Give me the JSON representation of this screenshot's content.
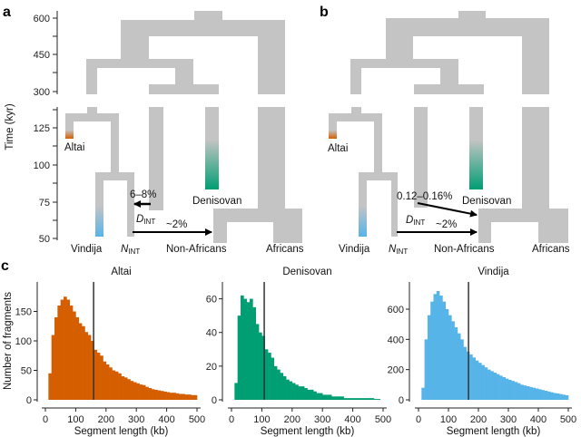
{
  "colors": {
    "branch": "#c4c4c4",
    "altai": "#d55e00",
    "denisovan": "#009e73",
    "vindija": "#56b4e9",
    "arrow": "#000000"
  },
  "panel_a": {
    "letter": "a",
    "y_axis_label": "Time (kyr)",
    "y_ticks_upper": [
      "600",
      "450",
      "300"
    ],
    "y_ticks_lower": [
      "125",
      "100",
      "75",
      "50"
    ],
    "labels": {
      "altai": "Altai",
      "denisovan": "Denisovan",
      "vindija": "Vindija",
      "nint_main": "N",
      "nint_sub": "INT",
      "non_africans": "Non-Africans",
      "africans": "Africans",
      "dint_main": "D",
      "dint_sub": "INT"
    },
    "arrows": [
      {
        "label": "6–8%",
        "from": "Denisovan lineage",
        "to": "NINT"
      },
      {
        "label": "~2%",
        "from": "NINT",
        "to": "Non-Africans"
      }
    ]
  },
  "panel_b": {
    "letter": "b",
    "labels": {
      "altai": "Altai",
      "denisovan": "Denisovan",
      "vindija": "Vindija",
      "nint_main": "N",
      "nint_sub": "INT",
      "non_africans": "Non-Africans",
      "africans": "Africans",
      "dint_main": "D",
      "dint_sub": "INT"
    },
    "arrows": [
      {
        "label": "0.12–0.16%",
        "from": "DINT",
        "to": "Non-Africans"
      },
      {
        "label": "~2%",
        "from": "NINT",
        "to": "Non-Africans"
      }
    ]
  },
  "panel_c": {
    "letter": "c"
  },
  "chart_data": [
    {
      "type": "bar",
      "title": "Altai",
      "xlabel": "Segment length (kb)",
      "ylabel": "Number of fragments",
      "xlim": [
        0,
        500
      ],
      "ylim": [
        0,
        200
      ],
      "x_ticks": [
        0,
        100,
        200,
        300,
        400,
        500
      ],
      "y_ticks": [
        0,
        50,
        100,
        150
      ],
      "bin_width": 10,
      "color": "#d55e00",
      "vline": 159,
      "values": [
        0,
        45,
        110,
        140,
        160,
        170,
        175,
        170,
        160,
        150,
        140,
        130,
        125,
        115,
        110,
        100,
        85,
        80,
        75,
        65,
        60,
        55,
        50,
        48,
        45,
        40,
        38,
        35,
        32,
        30,
        28,
        26,
        25,
        22,
        20,
        18,
        17,
        16,
        15,
        14,
        13,
        12,
        12,
        11,
        10,
        10,
        9,
        9,
        8,
        8
      ]
    },
    {
      "type": "bar",
      "title": "Denisovan",
      "xlabel": "Segment length (kb)",
      "ylabel": "",
      "xlim": [
        0,
        500
      ],
      "ylim": [
        0,
        70
      ],
      "x_ticks": [
        0,
        100,
        200,
        300,
        400,
        500
      ],
      "y_ticks": [
        0,
        20,
        40,
        60
      ],
      "bin_width": 10,
      "color": "#009e73",
      "vline": 108,
      "values": [
        0,
        10,
        50,
        62,
        60,
        58,
        60,
        55,
        45,
        40,
        38,
        30,
        28,
        25,
        20,
        18,
        16,
        14,
        12,
        11,
        10,
        9,
        8,
        8,
        7,
        6,
        6,
        5,
        4,
        4,
        3,
        3,
        3,
        2,
        2,
        2,
        2,
        1,
        1,
        1,
        1,
        1,
        1,
        1,
        1,
        1,
        1,
        0.5,
        0.5,
        0
      ]
    },
    {
      "type": "bar",
      "title": "Vindija",
      "xlabel": "Segment length (kb)",
      "ylabel": "",
      "xlim": [
        0,
        500
      ],
      "ylim": [
        0,
        780
      ],
      "x_ticks": [
        0,
        100,
        200,
        300,
        400,
        500
      ],
      "y_ticks": [
        0,
        200,
        400,
        600
      ],
      "bin_width": 10,
      "color": "#56b4e9",
      "vline": 167,
      "values": [
        0,
        80,
        400,
        560,
        650,
        700,
        720,
        690,
        650,
        600,
        560,
        520,
        480,
        440,
        400,
        350,
        320,
        300,
        280,
        260,
        245,
        230,
        215,
        200,
        190,
        180,
        170,
        160,
        150,
        140,
        132,
        125,
        118,
        110,
        100,
        95,
        90,
        85,
        80,
        75,
        70,
        65,
        60,
        55,
        50,
        45,
        42,
        38,
        34,
        30
      ]
    }
  ]
}
